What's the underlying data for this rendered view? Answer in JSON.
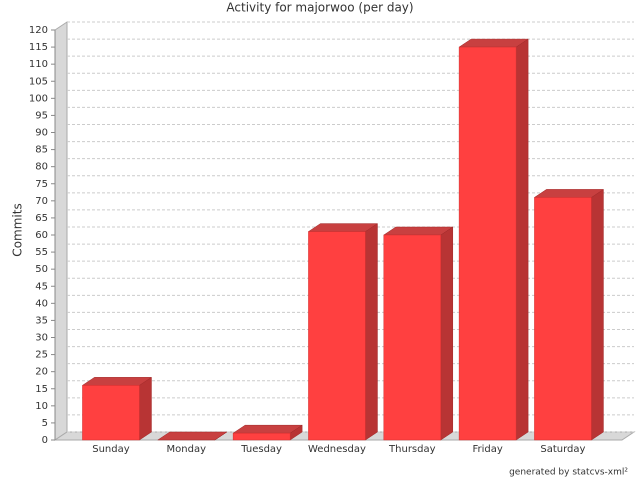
{
  "chart_data": {
    "type": "bar3d",
    "title": "Activity for majorwoo (per day)",
    "y_label": "Commits",
    "categories": [
      "Sunday",
      "Monday",
      "Tuesday",
      "Wednesday",
      "Thursday",
      "Friday",
      "Saturday"
    ],
    "values": [
      16,
      0,
      2,
      61,
      60,
      115,
      71
    ],
    "color": "#ff4040",
    "ylim": [
      0,
      120
    ],
    "yticks": [
      0,
      5,
      10,
      15,
      20,
      25,
      30,
      35,
      40,
      45,
      50,
      55,
      60,
      65,
      70,
      75,
      80,
      85,
      90,
      95,
      100,
      105,
      110,
      115,
      120
    ],
    "grid": true,
    "footer": "generated by statcvs-xml²"
  }
}
